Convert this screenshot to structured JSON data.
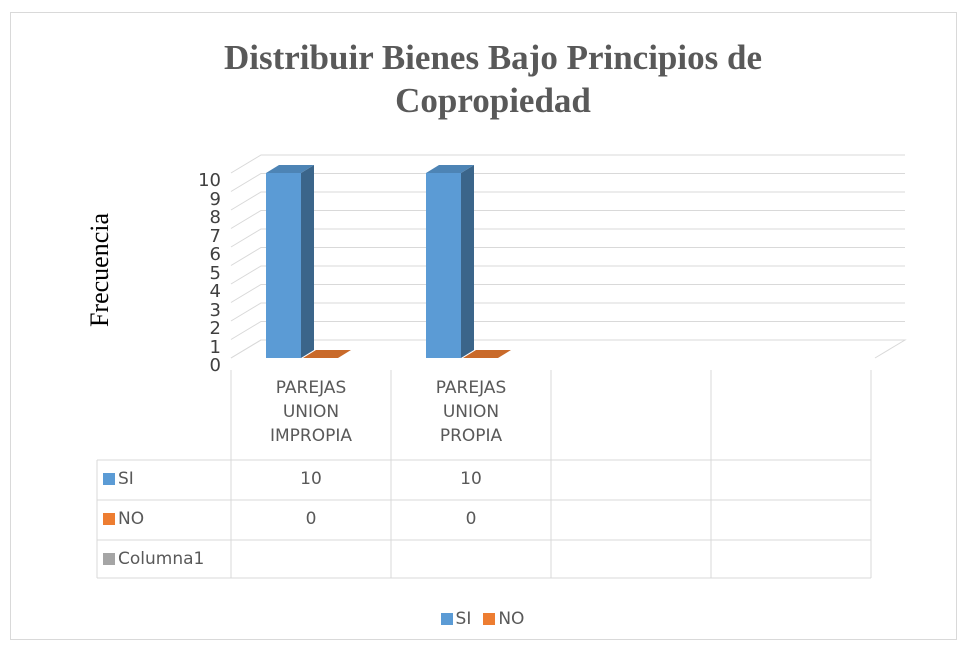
{
  "chart_data": {
    "type": "bar3d",
    "title": "Distribuir Bienes Bajo Principios de Copropiedad",
    "y_label": "Frecuencia",
    "categories": [
      "PAREJAS UNION IMPROPIA",
      "PAREJAS UNION PROPIA",
      null,
      null
    ],
    "series": [
      {
        "name": "SI",
        "color": "#5b9bd5",
        "values": [
          10,
          10,
          null,
          null
        ]
      },
      {
        "name": "NO",
        "color": "#ed7d31",
        "values": [
          0,
          0,
          null,
          null
        ]
      },
      {
        "name": "Columna1",
        "color": "#a5a5a5",
        "values": [
          null,
          null,
          null,
          null
        ]
      }
    ],
    "ylim": [
      0,
      10
    ],
    "yticks": [
      0,
      1,
      2,
      3,
      4,
      5,
      6,
      7,
      8,
      9,
      10
    ],
    "grid": true,
    "legend": "bottom",
    "data_table": true
  }
}
